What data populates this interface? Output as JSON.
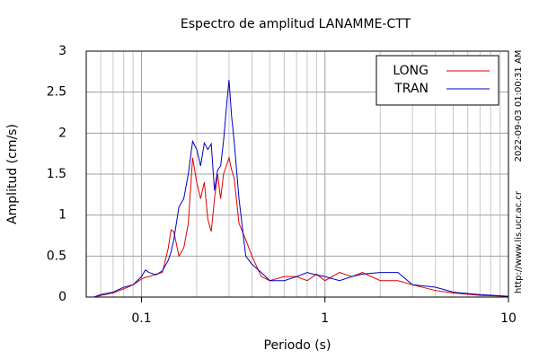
{
  "chart_data": {
    "type": "line",
    "title": "Espectro de amplitud LANAMME-CTT",
    "xlabel": "Periodo (s)",
    "ylabel": "Amplitud (cm/s)",
    "annotations": [
      "2022-09-03 01:00:31 AM",
      "http://www.lis.ucr.ac.cr"
    ],
    "xscale": "log",
    "grid": true,
    "legend": "upper right",
    "xlim": [
      0.05,
      10
    ],
    "ylim": [
      0,
      3
    ],
    "xticks": [
      0.1,
      1,
      10
    ],
    "xminorticks": [
      0.06,
      0.07,
      0.08,
      0.09,
      0.2,
      0.3,
      0.4,
      0.5,
      0.6,
      0.7,
      0.8,
      0.9,
      2,
      3,
      4,
      5,
      6,
      7,
      8,
      9
    ],
    "yticks": [
      0,
      0.5,
      1,
      1.5,
      2,
      2.5,
      3
    ],
    "x": [
      0.055,
      0.06,
      0.07,
      0.08,
      0.09,
      0.1,
      0.105,
      0.11,
      0.12,
      0.13,
      0.14,
      0.145,
      0.15,
      0.16,
      0.17,
      0.18,
      0.19,
      0.2,
      0.21,
      0.22,
      0.23,
      0.24,
      0.25,
      0.26,
      0.27,
      0.28,
      0.29,
      0.3,
      0.31,
      0.32,
      0.34,
      0.37,
      0.4,
      0.45,
      0.5,
      0.6,
      0.7,
      0.8,
      0.9,
      1,
      1.2,
      1.4,
      1.6,
      2,
      2.5,
      3,
      4,
      5,
      7,
      10
    ],
    "series": [
      {
        "name": "LONG",
        "color": "#e00000",
        "values": [
          0,
          0.02,
          0.05,
          0.1,
          0.15,
          0.22,
          0.24,
          0.25,
          0.28,
          0.3,
          0.6,
          0.82,
          0.8,
          0.5,
          0.6,
          0.9,
          1.7,
          1.4,
          1.2,
          1.4,
          0.95,
          0.8,
          1.2,
          1.5,
          1.2,
          1.5,
          1.6,
          1.7,
          1.55,
          1.45,
          0.9,
          0.7,
          0.5,
          0.25,
          0.2,
          0.25,
          0.25,
          0.2,
          0.28,
          0.2,
          0.3,
          0.25,
          0.3,
          0.2,
          0.2,
          0.15,
          0.08,
          0.05,
          0.02,
          0.01
        ]
      },
      {
        "name": "TRAN",
        "color": "#0000c0",
        "values": [
          0,
          0.03,
          0.06,
          0.12,
          0.15,
          0.25,
          0.33,
          0.3,
          0.27,
          0.32,
          0.45,
          0.55,
          0.7,
          1.1,
          1.2,
          1.5,
          1.9,
          1.8,
          1.6,
          1.88,
          1.8,
          1.87,
          1.3,
          1.55,
          1.6,
          1.9,
          2.3,
          2.65,
          2.2,
          1.9,
          1.2,
          0.5,
          0.4,
          0.3,
          0.2,
          0.2,
          0.25,
          0.3,
          0.27,
          0.25,
          0.2,
          0.25,
          0.28,
          0.3,
          0.3,
          0.15,
          0.12,
          0.06,
          0.03,
          0.01
        ]
      }
    ]
  }
}
